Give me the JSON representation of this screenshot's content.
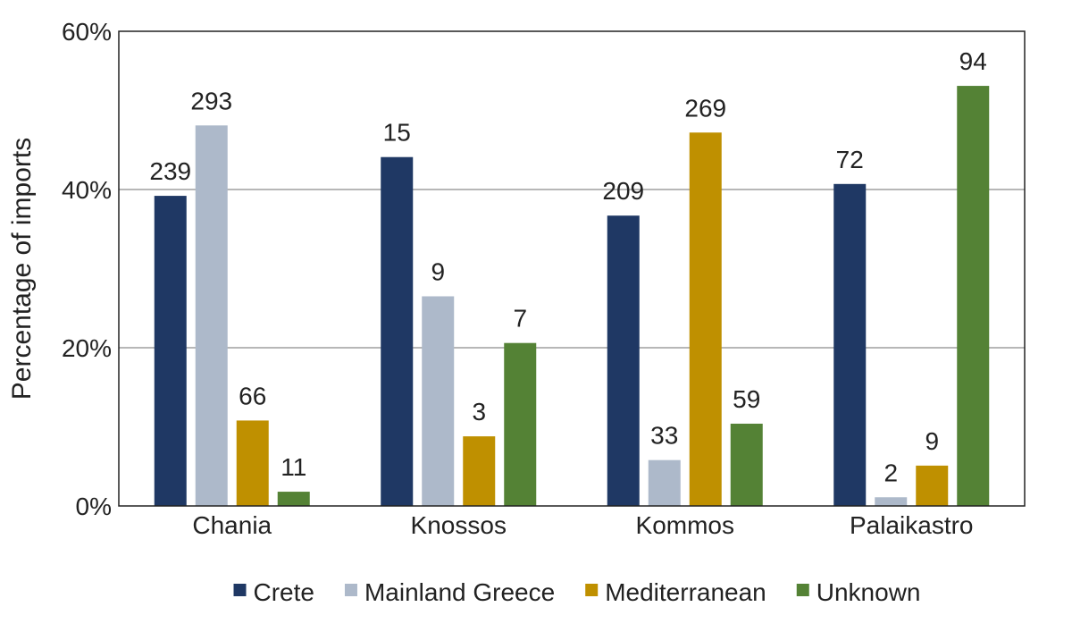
{
  "chart_data": {
    "type": "bar",
    "title": "",
    "xlabel": "",
    "ylabel": "Percentage of imports",
    "ylim": [
      0,
      60
    ],
    "yticks": [
      "0%",
      "20%",
      "40%",
      "60%"
    ],
    "yticks_values": [
      0,
      20,
      40,
      60
    ],
    "grid": true,
    "legend_position": "bottom",
    "categories": [
      "Chania",
      "Knossos",
      "Kommos",
      "Palaikastro"
    ],
    "series": [
      {
        "name": "Crete",
        "color": "#1f3864",
        "values": [
          39.2,
          44.1,
          36.7,
          40.7
        ],
        "labels": [
          "239",
          "15",
          "209",
          "72"
        ]
      },
      {
        "name": "Mainland Greece",
        "color": "#adb9ca",
        "values": [
          48.1,
          26.5,
          5.8,
          1.1
        ],
        "labels": [
          "293",
          "9",
          "33",
          "2"
        ]
      },
      {
        "name": "Mediterranean",
        "color": "#bf9000",
        "values": [
          10.8,
          8.8,
          47.2,
          5.1
        ],
        "labels": [
          "66",
          "3",
          "269",
          "9"
        ]
      },
      {
        "name": "Unknown",
        "color": "#548235",
        "values": [
          1.8,
          20.6,
          10.4,
          53.1
        ],
        "labels": [
          "11",
          "7",
          "59",
          "94"
        ]
      }
    ]
  }
}
